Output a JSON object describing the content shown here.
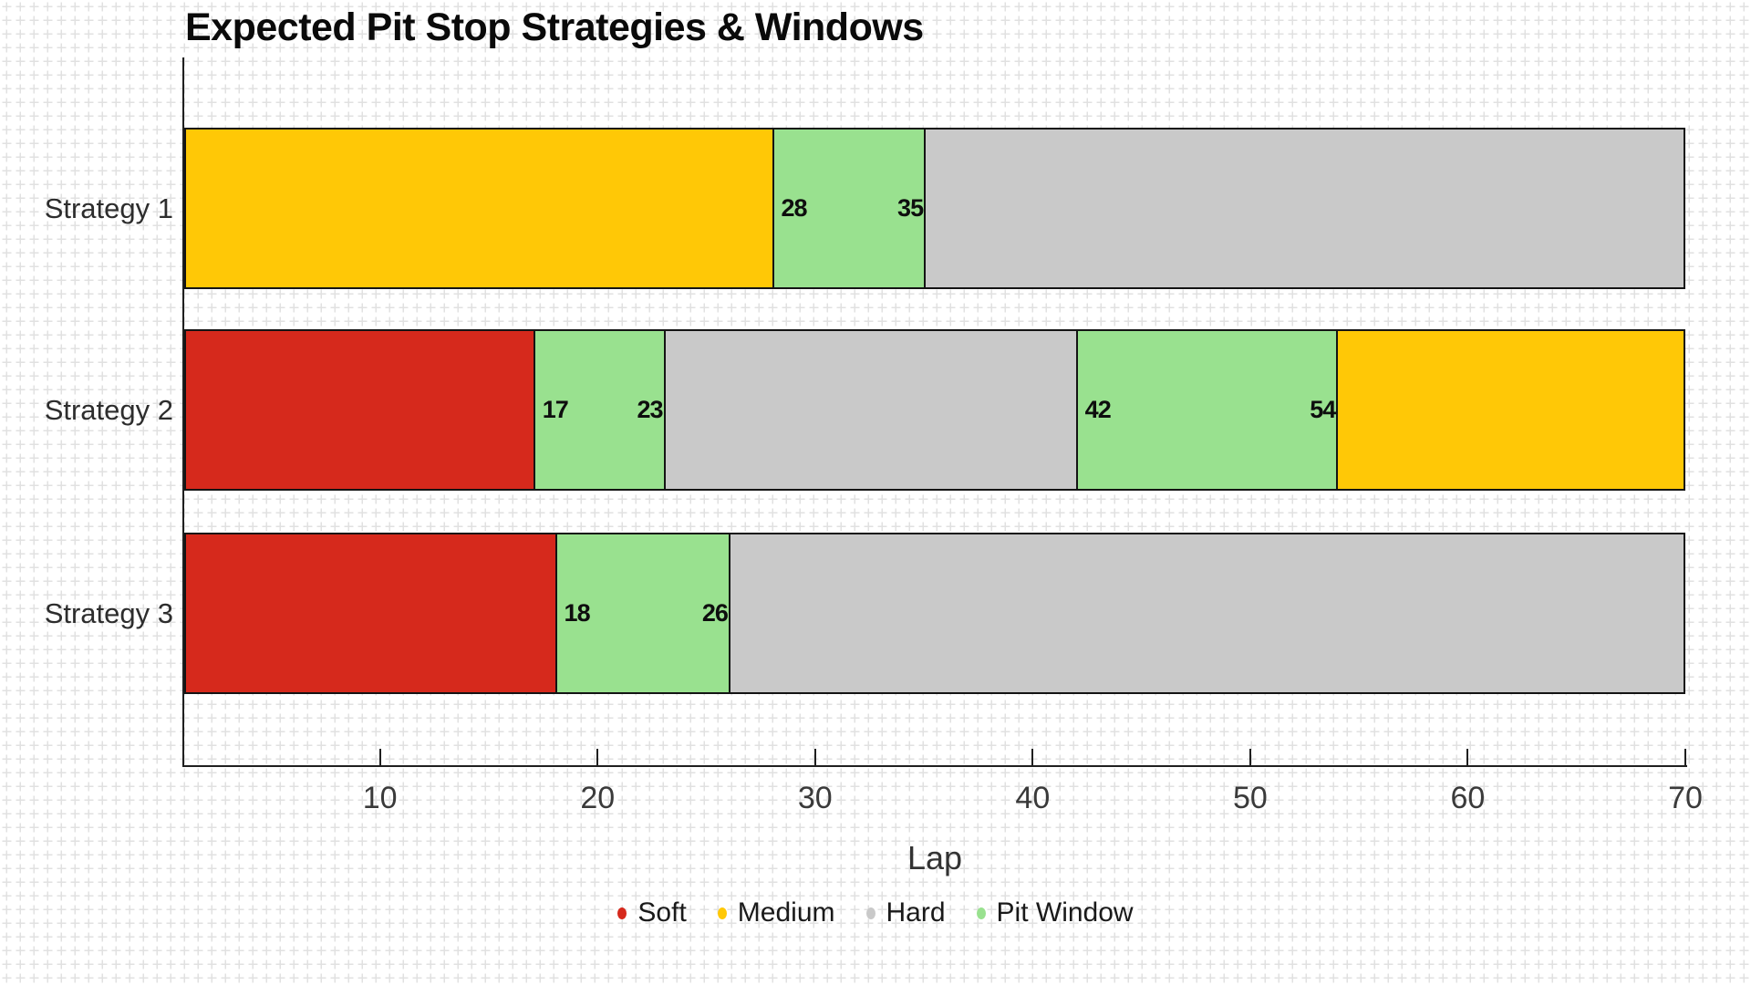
{
  "chart_data": {
    "type": "bar",
    "subtype": "horizontal_stacked_timeline",
    "title": "Expected Pit Stop Strategies & Windows",
    "xlabel": "Lap",
    "x_range": [
      1,
      70
    ],
    "x_ticks": [
      10,
      20,
      30,
      40,
      50,
      60,
      70
    ],
    "grid": "graph-paper background pattern, no plot gridlines",
    "legend_position": "bottom-center",
    "axis_color": "#1f1f1f",
    "segment_border_color": "#141414",
    "categories": [
      "Strategy 1",
      "Strategy 2",
      "Strategy 3"
    ],
    "legend": [
      {
        "label": "Soft",
        "color": "#d6291c"
      },
      {
        "label": "Medium",
        "color": "#ffc806"
      },
      {
        "label": "Hard",
        "color": "#c9c9c9"
      },
      {
        "label": "Pit Window",
        "color": "#99e18f"
      }
    ],
    "strategies": [
      {
        "name": "Strategy 1",
        "segments": [
          {
            "compound": "Medium",
            "start_lap": 1,
            "end_lap": 28
          },
          {
            "compound": "Pit Window",
            "start_lap": 28,
            "end_lap": 35,
            "labels": [
              "28",
              "35"
            ]
          },
          {
            "compound": "Hard",
            "start_lap": 35,
            "end_lap": 70
          }
        ]
      },
      {
        "name": "Strategy 2",
        "segments": [
          {
            "compound": "Soft",
            "start_lap": 1,
            "end_lap": 17
          },
          {
            "compound": "Pit Window",
            "start_lap": 17,
            "end_lap": 23,
            "labels": [
              "17",
              "23"
            ]
          },
          {
            "compound": "Hard",
            "start_lap": 23,
            "end_lap": 42
          },
          {
            "compound": "Pit Window",
            "start_lap": 42,
            "end_lap": 54,
            "labels": [
              "42",
              "54"
            ]
          },
          {
            "compound": "Medium",
            "start_lap": 54,
            "end_lap": 70
          }
        ]
      },
      {
        "name": "Strategy 3",
        "segments": [
          {
            "compound": "Soft",
            "start_lap": 1,
            "end_lap": 18
          },
          {
            "compound": "Pit Window",
            "start_lap": 18,
            "end_lap": 26,
            "labels": [
              "18",
              "26"
            ]
          },
          {
            "compound": "Hard",
            "start_lap": 26,
            "end_lap": 70
          }
        ]
      }
    ]
  }
}
